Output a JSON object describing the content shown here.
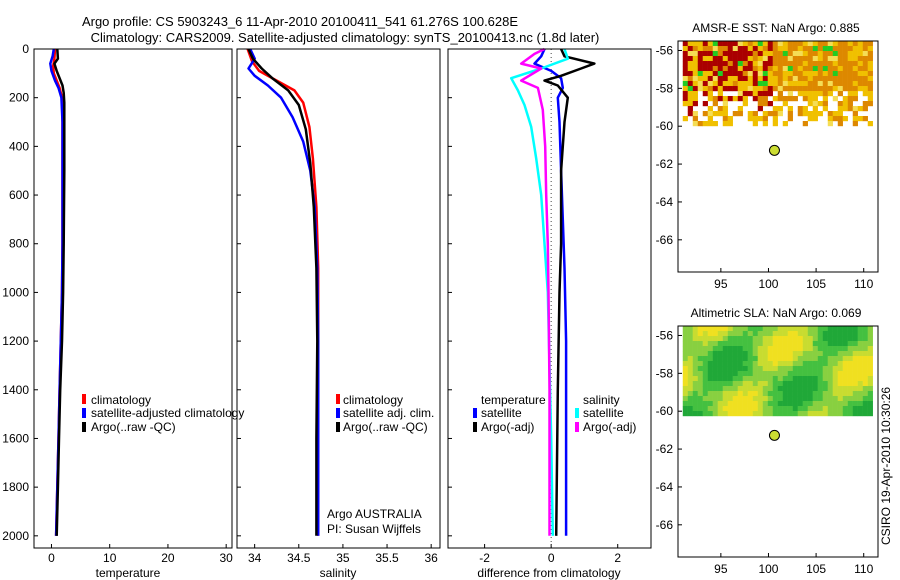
{
  "header": {
    "line1": "Argo profile: CS 5903243_6 11-Apr-2010 20100411_541 61.276S 100.628E",
    "line2": "Climatology: CARS2009. Satellite-adjusted climatology: synTS_20100413.nc (1.8d later)"
  },
  "credit": "CSIRO 19-Apr-2010 10:30:26",
  "colors": {
    "red": "#ff0000",
    "blue": "#0000ff",
    "black": "#000000",
    "cyan": "#00ffff",
    "magenta": "#ff00ff",
    "dotted": "#444444"
  },
  "chart_data": [
    {
      "type": "line",
      "id": "temperature",
      "xlabel": "temperature",
      "xlim": [
        -3,
        31
      ],
      "ylim": [
        2050,
        0
      ],
      "xticks": [
        0,
        10,
        20,
        30
      ],
      "yticks": [
        0,
        200,
        400,
        600,
        800,
        1000,
        1200,
        1400,
        1600,
        1800,
        2000
      ],
      "legend": [
        "climatology",
        "satellite-adjusted climatology",
        "Argo(..raw -QC)"
      ],
      "series": [
        {
          "name": "climatology",
          "color": "red",
          "points": [
            [
              0.6,
              0
            ],
            [
              0.5,
              40
            ],
            [
              0.3,
              70
            ],
            [
              0.4,
              100
            ],
            [
              0.9,
              130
            ],
            [
              1.4,
              160
            ],
            [
              1.8,
              200
            ],
            [
              1.9,
              300
            ],
            [
              1.9,
              500
            ],
            [
              1.9,
              800
            ],
            [
              1.8,
              1000
            ],
            [
              1.6,
              1200
            ],
            [
              1.4,
              1400
            ],
            [
              1.2,
              1600
            ],
            [
              1.0,
              1800
            ],
            [
              0.8,
              2000
            ]
          ]
        },
        {
          "name": "satellite-adjusted climatology",
          "color": "blue",
          "points": [
            [
              0.4,
              0
            ],
            [
              0.2,
              30
            ],
            [
              -0.2,
              60
            ],
            [
              0.0,
              90
            ],
            [
              0.6,
              130
            ],
            [
              1.2,
              160
            ],
            [
              1.7,
              200
            ],
            [
              1.9,
              300
            ],
            [
              1.9,
              500
            ],
            [
              1.9,
              800
            ],
            [
              1.8,
              1000
            ],
            [
              1.6,
              1200
            ],
            [
              1.4,
              1400
            ],
            [
              1.2,
              1600
            ],
            [
              1.0,
              1800
            ],
            [
              0.8,
              2000
            ]
          ]
        },
        {
          "name": "Argo(..raw -QC)",
          "color": "black",
          "points": [
            [
              1.0,
              0
            ],
            [
              1.1,
              40
            ],
            [
              0.5,
              60
            ],
            [
              0.9,
              90
            ],
            [
              1.4,
              120
            ],
            [
              1.9,
              150
            ],
            [
              2.1,
              180
            ],
            [
              2.2,
              220
            ],
            [
              2.2,
              300
            ],
            [
              2.2,
              500
            ],
            [
              2.1,
              800
            ],
            [
              2.0,
              1000
            ],
            [
              1.8,
              1200
            ],
            [
              1.5,
              1400
            ],
            [
              1.3,
              1600
            ],
            [
              1.1,
              1800
            ],
            [
              0.9,
              2000
            ]
          ]
        }
      ]
    },
    {
      "type": "line",
      "id": "salinity",
      "xlabel": "salinity",
      "xlim": [
        33.8,
        36.1
      ],
      "ylim": [
        2050,
        0
      ],
      "xticks": [
        34,
        34.5,
        35,
        35.5,
        36
      ],
      "legend": [
        "climatology",
        "satellite adj. clim.",
        "Argo(..raw -QC)"
      ],
      "annotation": [
        "Argo AUSTRALIA",
        "PI: Susan Wijffels"
      ],
      "series": [
        {
          "name": "climatology",
          "color": "red",
          "points": [
            [
              33.92,
              0
            ],
            [
              33.97,
              50
            ],
            [
              34.05,
              90
            ],
            [
              34.25,
              130
            ],
            [
              34.45,
              170
            ],
            [
              34.55,
              220
            ],
            [
              34.62,
              320
            ],
            [
              34.66,
              450
            ],
            [
              34.7,
              650
            ],
            [
              34.72,
              900
            ],
            [
              34.72,
              1200
            ],
            [
              34.72,
              1600
            ],
            [
              34.72,
              2000
            ]
          ]
        },
        {
          "name": "satellite adj. clim.",
          "color": "blue",
          "points": [
            [
              33.95,
              0
            ],
            [
              34.0,
              40
            ],
            [
              33.93,
              80
            ],
            [
              34.0,
              110
            ],
            [
              34.15,
              150
            ],
            [
              34.3,
              200
            ],
            [
              34.43,
              280
            ],
            [
              34.55,
              380
            ],
            [
              34.63,
              500
            ],
            [
              34.68,
              650
            ],
            [
              34.71,
              900
            ],
            [
              34.72,
              1200
            ],
            [
              34.72,
              1600
            ],
            [
              34.72,
              2000
            ]
          ]
        },
        {
          "name": "Argo(..raw -QC)",
          "color": "black",
          "points": [
            [
              33.93,
              0
            ],
            [
              33.98,
              40
            ],
            [
              34.08,
              80
            ],
            [
              34.2,
              120
            ],
            [
              34.38,
              170
            ],
            [
              34.5,
              230
            ],
            [
              34.58,
              330
            ],
            [
              34.63,
              470
            ],
            [
              34.67,
              650
            ],
            [
              34.7,
              900
            ],
            [
              34.71,
              1200
            ],
            [
              34.7,
              1600
            ],
            [
              34.7,
              2000
            ]
          ]
        }
      ]
    },
    {
      "type": "line",
      "id": "difference",
      "xlabel": "difference from climatology",
      "xlim": [
        -3.1,
        3.0
      ],
      "ylim": [
        2050,
        0
      ],
      "xticks": [
        -2,
        0,
        2
      ],
      "legend_left": {
        "title": "temperature",
        "items": [
          "satellite",
          "Argo(-adj)"
        ]
      },
      "legend_right": {
        "title": "salinity",
        "items": [
          "satellite",
          "Argo(-adj)"
        ]
      },
      "series": [
        {
          "name": "temperature satellite",
          "color": "blue",
          "points": [
            [
              -0.2,
              0
            ],
            [
              -0.3,
              30
            ],
            [
              -0.5,
              60
            ],
            [
              0.0,
              90
            ],
            [
              0.3,
              120
            ],
            [
              0.35,
              160
            ],
            [
              0.2,
              200
            ],
            [
              0.25,
              300
            ],
            [
              0.3,
              500
            ],
            [
              0.35,
              700
            ],
            [
              0.4,
              900
            ],
            [
              0.45,
              1200
            ],
            [
              0.45,
              1500
            ],
            [
              0.45,
              1800
            ],
            [
              0.45,
              2000
            ]
          ]
        },
        {
          "name": "temperature Argo(-adj)",
          "color": "black",
          "points": [
            [
              0.3,
              0
            ],
            [
              0.4,
              30
            ],
            [
              1.3,
              60
            ],
            [
              0.9,
              80
            ],
            [
              0.3,
              110
            ],
            [
              -0.2,
              130
            ],
            [
              0.2,
              150
            ],
            [
              0.5,
              200
            ],
            [
              0.4,
              300
            ],
            [
              0.3,
              500
            ],
            [
              0.3,
              800
            ],
            [
              0.25,
              1000
            ],
            [
              0.2,
              1400
            ],
            [
              0.15,
              2000
            ]
          ]
        },
        {
          "name": "salinity satellite",
          "color": "cyan",
          "points": [
            [
              0.4,
              0
            ],
            [
              0.5,
              40
            ],
            [
              -0.3,
              80
            ],
            [
              -1.2,
              120
            ],
            [
              -1.0,
              170
            ],
            [
              -0.8,
              230
            ],
            [
              -0.6,
              320
            ],
            [
              -0.45,
              450
            ],
            [
              -0.3,
              600
            ],
            [
              -0.2,
              800
            ],
            [
              -0.1,
              1000
            ],
            [
              -0.05,
              1300
            ],
            [
              0.0,
              1600
            ],
            [
              0.05,
              2000
            ]
          ]
        },
        {
          "name": "salinity Argo(-adj)",
          "color": "magenta",
          "points": [
            [
              -0.2,
              0
            ],
            [
              -0.5,
              20
            ],
            [
              -0.9,
              60
            ],
            [
              -0.3,
              80
            ],
            [
              -0.9,
              130
            ],
            [
              -0.4,
              160
            ],
            [
              -0.25,
              250
            ],
            [
              -0.18,
              400
            ],
            [
              -0.15,
              600
            ],
            [
              -0.1,
              800
            ],
            [
              -0.08,
              1000
            ],
            [
              -0.05,
              1400
            ],
            [
              -0.05,
              2000
            ]
          ]
        }
      ]
    },
    {
      "type": "heatmap",
      "id": "sst-map",
      "title": "AMSR-E SST: NaN Argo: 0.885",
      "xlim": [
        90.5,
        111.5
      ],
      "ylim": [
        -67.7,
        -55.5
      ],
      "xticks": [
        95,
        100,
        105,
        110
      ],
      "yticks": [
        -56,
        -58,
        -60,
        -62,
        -64,
        -66
      ],
      "marker": {
        "lon": 100.628,
        "lat": -61.276
      },
      "field_extent": {
        "lon": [
          91,
          111
        ],
        "lat": [
          -60,
          -55.5
        ]
      }
    },
    {
      "type": "heatmap",
      "id": "sla-map",
      "title": "Altimetric SLA: NaN Argo: 0.069",
      "xlim": [
        90.5,
        111.5
      ],
      "ylim": [
        -67.7,
        -55.5
      ],
      "xticks": [
        95,
        100,
        105,
        110
      ],
      "yticks": [
        -56,
        -58,
        -60,
        -62,
        -64,
        -66
      ],
      "marker": {
        "lon": 100.628,
        "lat": -61.276
      },
      "field_extent": {
        "lon": [
          91,
          111
        ],
        "lat": [
          -60.2,
          -55.5
        ]
      }
    }
  ]
}
